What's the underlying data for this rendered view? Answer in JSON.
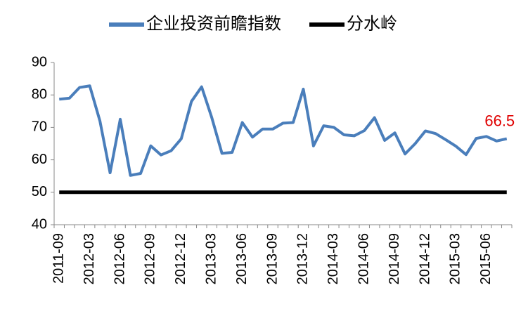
{
  "chart_data": {
    "type": "line",
    "categories": [
      "2011-09",
      null,
      null,
      "2012-03",
      null,
      null,
      "2012-06",
      null,
      null,
      "2012-09",
      null,
      null,
      "2012-12",
      null,
      null,
      "2013-03",
      null,
      null,
      "2013-06",
      null,
      null,
      "2013-09",
      null,
      null,
      "2013-12",
      null,
      null,
      "2014-03",
      null,
      null,
      "2014-06",
      null,
      null,
      "2014-09",
      null,
      null,
      "2014-12",
      null,
      null,
      "2015-03",
      null,
      null,
      "2015-06",
      null,
      null
    ],
    "series": [
      {
        "name": "企业投资前瞻指数",
        "color": "#4a7ebb",
        "values": [
          78.7,
          79,
          82.3,
          82.8,
          72,
          56,
          72.5,
          55.2,
          55.8,
          64.3,
          61.5,
          62.8,
          66.5,
          78,
          82.5,
          73,
          62,
          62.3,
          71.5,
          67,
          69.5,
          69.5,
          71.3,
          71.5,
          81.8,
          64.3,
          70.5,
          70,
          67.7,
          67.4,
          69,
          73,
          66,
          68.3,
          61.8,
          65,
          68.9,
          68.1,
          66.2,
          64.2,
          61.6,
          66.6,
          67.2,
          65.8,
          66.5
        ]
      },
      {
        "name": "分水岭",
        "color": "#000000",
        "values": [
          50,
          50,
          50,
          50,
          50,
          50,
          50,
          50,
          50,
          50,
          50,
          50,
          50,
          50,
          50,
          50,
          50,
          50,
          50,
          50,
          50,
          50,
          50,
          50,
          50,
          50,
          50,
          50,
          50,
          50,
          50,
          50,
          50,
          50,
          50,
          50,
          50,
          50,
          50,
          50,
          50,
          50,
          50,
          50,
          50
        ]
      }
    ],
    "ylim": [
      40,
      90
    ],
    "yticks": [
      40,
      50,
      60,
      70,
      80,
      90
    ],
    "grid": false,
    "legend": "top"
  }
}
